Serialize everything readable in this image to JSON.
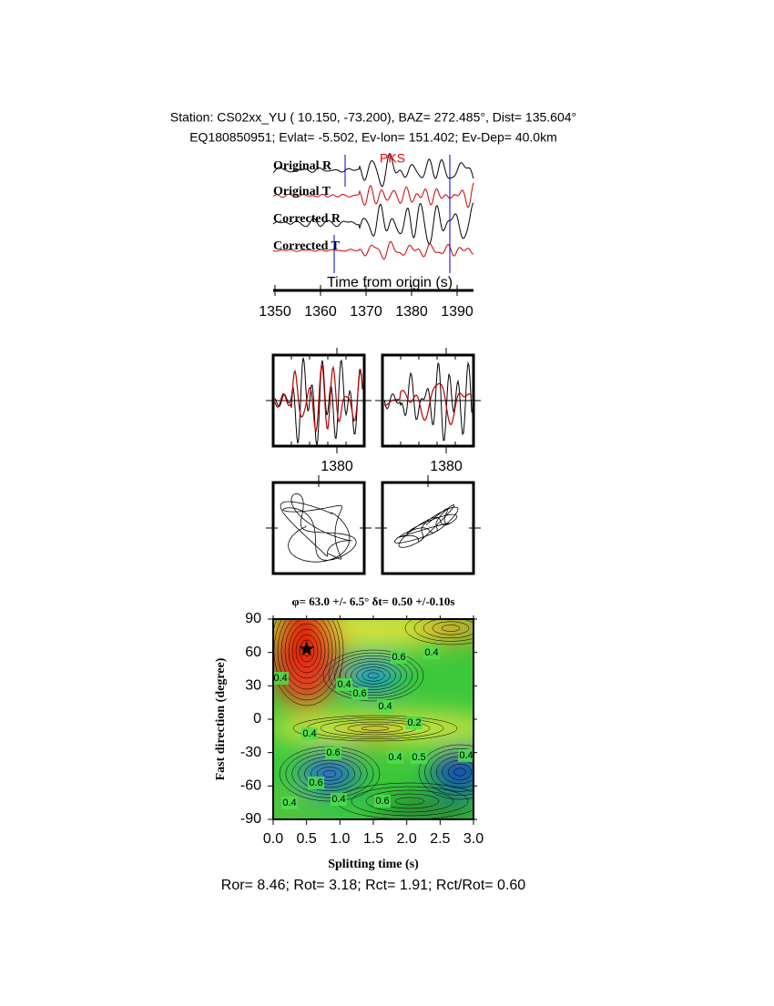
{
  "header": {
    "station_line": "Station: CS02xx_YU (  10.150,  -73.200), BAZ=  272.485°, Dist=  135.604°",
    "event_line": "EQ180850951; Evlat=  -5.502, Ev-lon= 151.402; Ev-Dep= 40.0km"
  },
  "chart_data": [
    {
      "type": "waveform",
      "trace_labels": [
        "Original R",
        "Original T",
        "Corrected R",
        "Corrected T"
      ],
      "phase": "PKS",
      "xlabel": "Time from origin (s)",
      "xlim": [
        1350,
        1394
      ],
      "xticks": [
        1350,
        1360,
        1370,
        1380,
        1390
      ]
    },
    {
      "type": "waveform-window",
      "xlim": [
        1366,
        1386
      ],
      "xticks": [
        1380
      ]
    },
    {
      "type": "waveform-window",
      "xlim": [
        1366,
        1386
      ],
      "xticks": [
        1380
      ]
    },
    {
      "type": "contour",
      "title": "φ= 63.0 +/- 6.5° δt= 0.50 +/-0.10s",
      "xlabel": "Splitting time (s)",
      "ylabel": "Fast direction (degree)",
      "xlim": [
        0,
        3
      ],
      "ylim": [
        -90,
        90
      ],
      "xticks": [
        {
          "value": 0,
          "label": "0.0"
        },
        0.5,
        {
          "value": 1,
          "label": "1.0"
        },
        1.5,
        {
          "value": 2,
          "label": "2.0"
        },
        2.5,
        {
          "value": 3,
          "label": "3.0"
        }
      ],
      "yticks": [
        -90,
        -60,
        -30,
        0,
        30,
        60,
        90
      ],
      "best": {
        "x": 0.5,
        "y": 63
      },
      "contour_labels": [
        0.4,
        0.4,
        0.6,
        0.4,
        0.6,
        0.4,
        0.2,
        0.4,
        0.6,
        0.4,
        0.5,
        0.6,
        0.4,
        0.6,
        0.4,
        0.4
      ]
    }
  ],
  "footer": "Ror= 8.46; Rot= 3.18; Rct= 1.91; Rct/Rot= 0.60"
}
